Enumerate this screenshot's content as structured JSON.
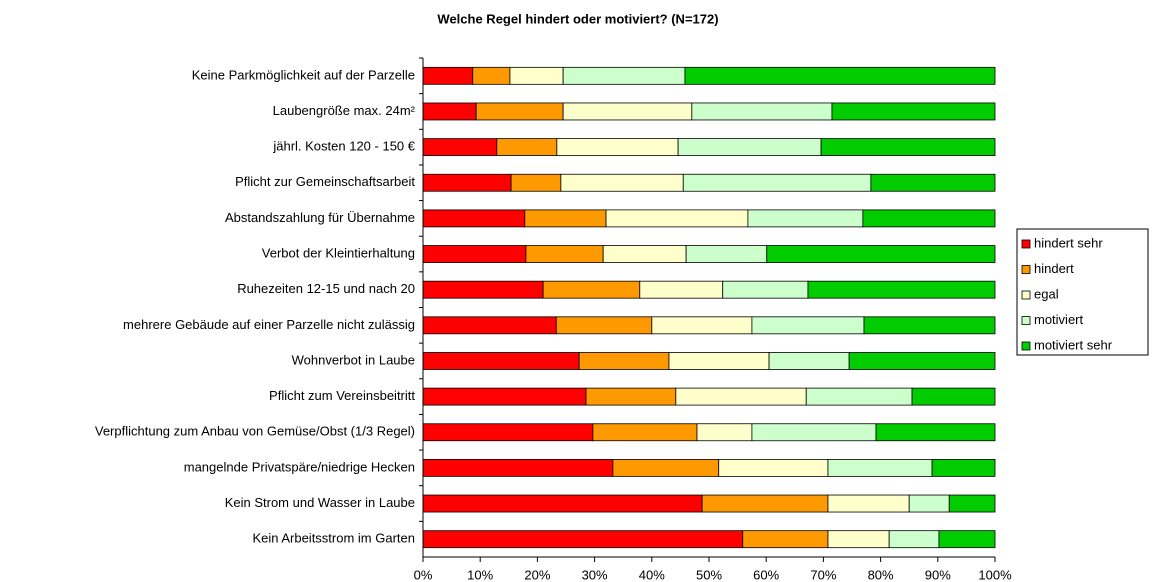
{
  "chart_data": {
    "type": "stacked-barh",
    "title": "Welche Regel hindert oder motiviert? (N=172)",
    "categories": [
      "Keine Parkmöglichkeit auf der Parzelle",
      "Laubengröße max. 24m²",
      "jährl. Kosten 120 - 150 €",
      "Pflicht zur Gemeinschaftsarbeit",
      "Abstandszahlung für Übernahme",
      "Verbot der Kleintierhaltung",
      "Ruhezeiten 12-15 und nach 20",
      "mehrere Gebäude auf einer Parzelle nicht zulässig",
      "Wohnverbot in Laube",
      "Pflicht zum Vereinsbeitritt",
      "Verpflichtung zum Anbau von Gemüse/Obst (1/3 Regel)",
      "mangelnde Privatspäre/niedrige Hecken",
      "Kein Strom und Wasser in Laube",
      "Kein Arbeitsstrom im Garten"
    ],
    "series": [
      {
        "name": "hindert sehr",
        "color": "#ff0000",
        "values": [
          8.7,
          9.3,
          12.9,
          15.4,
          17.8,
          18.0,
          21.0,
          23.3,
          27.3,
          28.5,
          29.7,
          33.2,
          48.8,
          55.9
        ]
      },
      {
        "name": "hindert",
        "color": "#ff9900",
        "values": [
          6.5,
          15.2,
          10.5,
          8.7,
          14.2,
          13.5,
          16.9,
          16.7,
          15.7,
          15.7,
          18.2,
          18.5,
          22.0,
          14.9
        ]
      },
      {
        "name": "egal",
        "color": "#ffffcc",
        "values": [
          9.3,
          22.5,
          21.2,
          21.4,
          24.8,
          14.5,
          14.5,
          17.5,
          17.5,
          22.8,
          9.6,
          19.1,
          14.2,
          10.7
        ]
      },
      {
        "name": "motiviert",
        "color": "#ccffcc",
        "values": [
          21.3,
          24.5,
          25.0,
          32.8,
          20.1,
          14.1,
          14.9,
          19.6,
          14.0,
          18.5,
          21.7,
          18.2,
          7.0,
          8.7
        ]
      },
      {
        "name": "motiviert sehr",
        "color": "#00cc00",
        "values": [
          54.2,
          28.5,
          30.4,
          21.7,
          23.1,
          39.9,
          32.7,
          22.9,
          25.5,
          14.5,
          20.8,
          11.0,
          8.0,
          9.8
        ]
      }
    ],
    "xlim": [
      0,
      100
    ],
    "xticks": [
      {
        "value": 0,
        "label": "0%"
      },
      {
        "value": 10,
        "label": "10%"
      },
      {
        "value": 20,
        "label": "20%"
      },
      {
        "value": 30,
        "label": "30%"
      },
      {
        "value": 40,
        "label": "40%"
      },
      {
        "value": 50,
        "label": "50%"
      },
      {
        "value": 60,
        "label": "60%"
      },
      {
        "value": 70,
        "label": "70%"
      },
      {
        "value": 80,
        "label": "80%"
      },
      {
        "value": 90,
        "label": "90%"
      },
      {
        "value": 100,
        "label": "100%"
      }
    ],
    "legend": "right"
  }
}
